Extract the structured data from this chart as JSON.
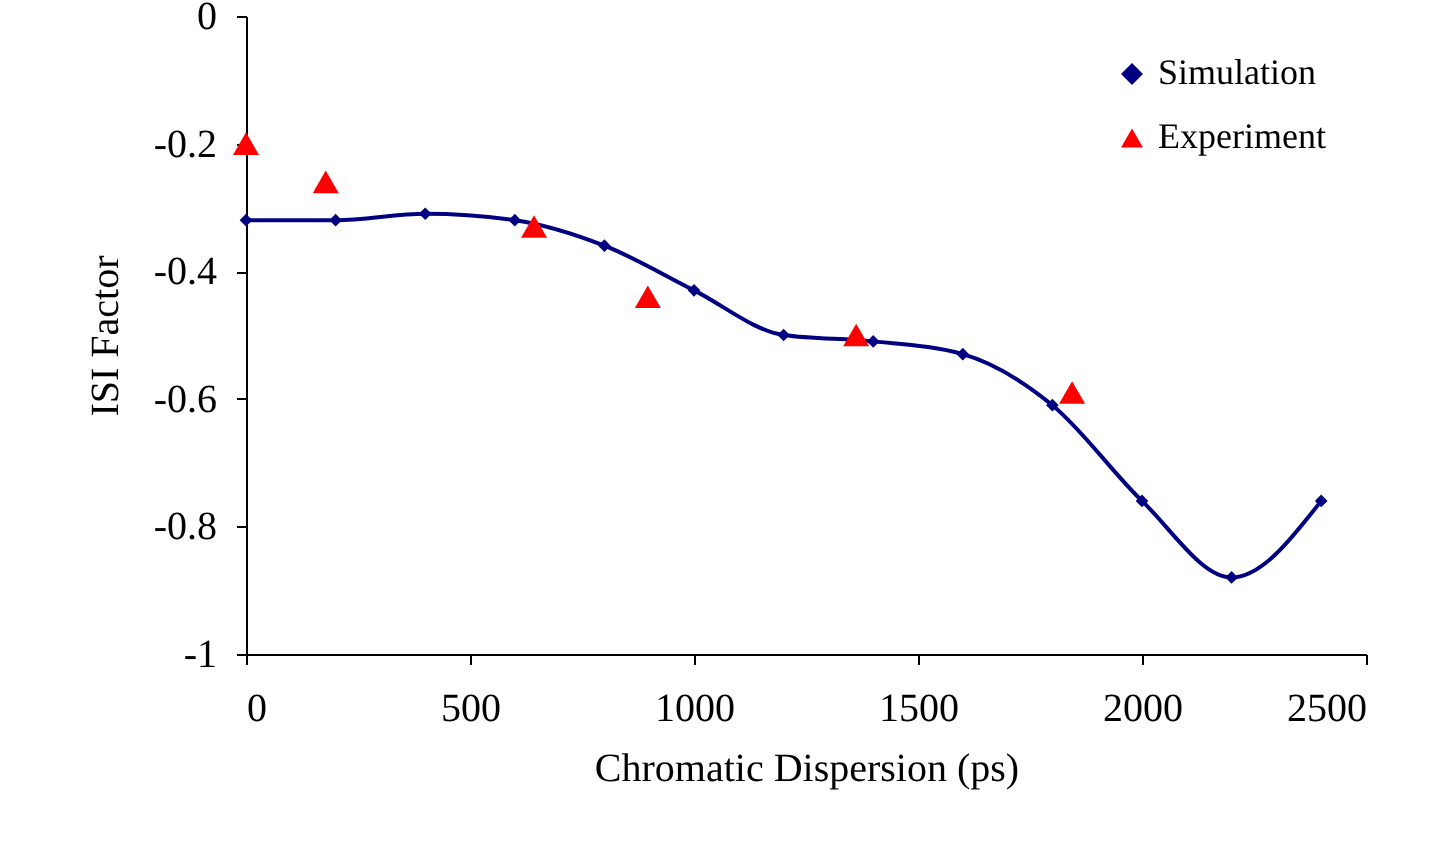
{
  "chart_data": {
    "type": "line",
    "xlabel": "Chromatic Dispersion (ps)",
    "ylabel": "ISI Factor",
    "xlim": [
      0,
      2500
    ],
    "xticks": [
      0,
      500,
      1000,
      1500,
      2000,
      2500
    ],
    "ylim": [
      -1,
      0
    ],
    "yticks": [
      -1,
      -0.8,
      -0.6,
      -0.4,
      -0.2,
      0
    ],
    "legend": "top right",
    "grid": false,
    "series": [
      {
        "name": "Simulation",
        "marker": "diamond",
        "color": "#000080",
        "x": [
          0,
          200,
          400,
          600,
          800,
          1000,
          1200,
          1400,
          1600,
          1800,
          2000,
          2200,
          2400
        ],
        "values": [
          -0.32,
          -0.32,
          -0.31,
          -0.32,
          -0.36,
          -0.43,
          -0.5,
          -0.51,
          -0.53,
          -0.61,
          -0.76,
          -0.88,
          -0.76
        ]
      },
      {
        "name": "Experiment",
        "type": "scatter",
        "marker": "triangle",
        "color": "#ff0000",
        "x": [
          0,
          178,
          643,
          897,
          1362,
          1844
        ],
        "values": [
          -0.2,
          -0.26,
          -0.33,
          -0.44,
          -0.5,
          -0.59
        ]
      }
    ]
  }
}
